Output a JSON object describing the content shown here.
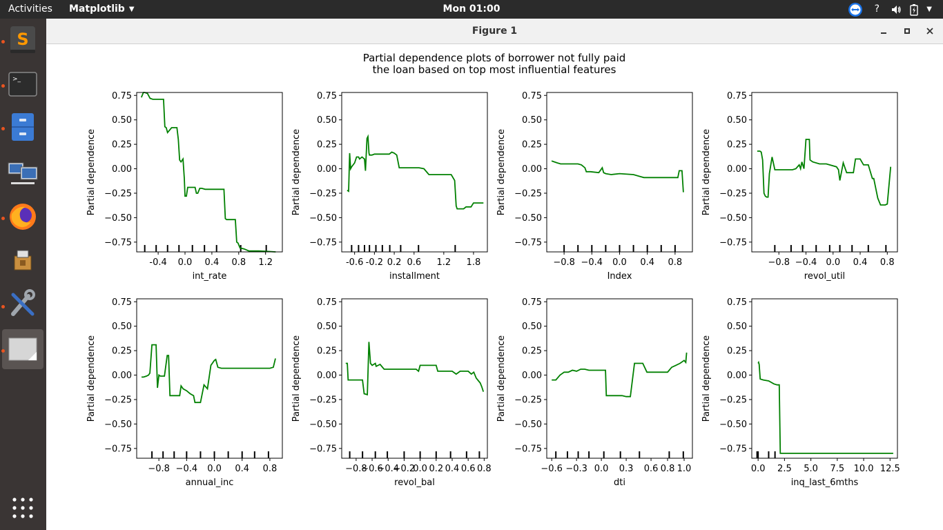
{
  "topbar": {
    "activities": "Activities",
    "app_menu": "Matplotlib",
    "clock": "Mon 01:00",
    "help": "?"
  },
  "dock": {
    "items": [
      {
        "name": "sublime-text",
        "icon": "sublime-text-icon",
        "running": true
      },
      {
        "name": "terminal",
        "icon": "terminal-icon",
        "running": true
      },
      {
        "name": "file-manager",
        "icon": "file-cabinet-icon",
        "running": true
      },
      {
        "name": "remote-desktop",
        "icon": "network-computers-icon",
        "running": false
      },
      {
        "name": "firefox",
        "icon": "firefox-icon",
        "running": true
      },
      {
        "name": "installer",
        "icon": "installer-box-icon",
        "running": false
      },
      {
        "name": "system-tools",
        "icon": "tools-icon",
        "running": true
      },
      {
        "name": "matplotlib-figure",
        "icon": "image-window-icon",
        "running": true,
        "active": true
      }
    ],
    "show_apps_icon": "app-grid-icon"
  },
  "window": {
    "title": "Figure 1",
    "buttons": [
      "minimize",
      "maximize",
      "close"
    ]
  },
  "figure": {
    "suptitle_line1": "Partial dependence plots of borrower not fully paid",
    "suptitle_line2": "the loan based on top most influential features"
  },
  "chart_data": [
    {
      "type": "line",
      "xlabel": "int_rate",
      "ylabel": "Partial dependence",
      "xlim": [
        -0.72,
        1.45
      ],
      "ylim": [
        -0.85,
        0.78
      ],
      "xticks": [
        "-0.4",
        "0.0",
        "0.4",
        "0.8",
        "1.2"
      ],
      "xtick_values": [
        -0.4,
        0,
        0.4,
        0.8,
        1.2
      ],
      "yticks": [
        "0.75",
        "0.50",
        "0.25",
        "0.00",
        "−0.25",
        "−0.50",
        "−0.75"
      ],
      "ytick_values": [
        0.75,
        0.5,
        0.25,
        0,
        -0.25,
        -0.5,
        -0.75
      ],
      "deciles": [
        -0.6,
        -0.43,
        -0.26,
        -0.09,
        0.11,
        0.29,
        0.47,
        0.83,
        1.21
      ],
      "color": "#008000",
      "x": [
        -0.65,
        -0.62,
        -0.6,
        -0.56,
        -0.52,
        -0.48,
        -0.4,
        -0.32,
        -0.3,
        -0.28,
        -0.26,
        -0.2,
        -0.12,
        -0.1,
        -0.08,
        -0.06,
        -0.03,
        -0.01,
        0.0,
        0.02,
        0.04,
        0.06,
        0.1,
        0.15,
        0.17,
        0.19,
        0.22,
        0.25,
        0.3,
        0.35,
        0.5,
        0.58,
        0.6,
        0.62,
        0.75,
        0.77,
        0.79,
        0.82,
        0.88,
        0.95,
        1.1,
        1.35
      ],
      "y": [
        0.73,
        0.78,
        0.78,
        0.77,
        0.72,
        0.71,
        0.71,
        0.71,
        0.43,
        0.42,
        0.37,
        0.42,
        0.42,
        0.3,
        0.09,
        0.07,
        0.1,
        -0.1,
        -0.28,
        -0.28,
        -0.19,
        -0.19,
        -0.19,
        -0.19,
        -0.25,
        -0.25,
        -0.2,
        -0.2,
        -0.21,
        -0.21,
        -0.21,
        -0.21,
        -0.51,
        -0.52,
        -0.52,
        -0.75,
        -0.76,
        -0.81,
        -0.82,
        -0.84,
        -0.84,
        -0.85
      ]
    },
    {
      "type": "line",
      "xlabel": "installment",
      "ylabel": "Partial dependence",
      "xlim": [
        -0.86,
        2.08
      ],
      "ylim": [
        -0.85,
        0.78
      ],
      "xticks": [
        "-0.6",
        "-0.2",
        "0.2",
        "0.6",
        "1.2",
        "1.8"
      ],
      "xtick_values": [
        -0.6,
        -0.2,
        0.2,
        0.6,
        1.2,
        1.8
      ],
      "yticks": [
        "0.75",
        "0.50",
        "0.25",
        "0.00",
        "−0.25",
        "−0.50",
        "−0.75"
      ],
      "ytick_values": [
        0.75,
        0.5,
        0.25,
        0,
        -0.25,
        -0.5,
        -0.75
      ],
      "deciles": [
        -0.66,
        -0.52,
        -0.4,
        -0.3,
        -0.17,
        -0.04,
        0.11,
        0.33,
        0.69,
        1.43
      ],
      "color": "#008000",
      "x": [
        -0.75,
        -0.72,
        -0.7,
        -0.68,
        -0.66,
        -0.6,
        -0.56,
        -0.52,
        -0.5,
        -0.45,
        -0.4,
        -0.38,
        -0.35,
        -0.33,
        -0.31,
        -0.3,
        -0.25,
        -0.2,
        -0.1,
        0.0,
        0.1,
        0.15,
        0.2,
        0.25,
        0.3,
        0.35,
        0.6,
        0.7,
        0.8,
        0.9,
        1.0,
        1.35,
        1.42,
        1.45,
        1.47,
        1.6,
        1.65,
        1.75,
        1.8,
        2.0
      ],
      "y": [
        -0.22,
        -0.23,
        0.16,
        0.0,
        0.02,
        0.06,
        0.12,
        0.12,
        0.1,
        0.12,
        0.1,
        -0.02,
        0.31,
        0.33,
        0.16,
        0.14,
        0.14,
        0.15,
        0.15,
        0.15,
        0.15,
        0.17,
        0.16,
        0.14,
        0.01,
        0.01,
        0.01,
        0.01,
        0.0,
        -0.06,
        -0.06,
        -0.06,
        -0.12,
        -0.38,
        -0.41,
        -0.41,
        -0.39,
        -0.39,
        -0.35,
        -0.35
      ]
    },
    {
      "type": "line",
      "xlabel": "Index",
      "ylabel": "Partial dependence",
      "xlim": [
        -1.05,
        1.05
      ],
      "ylim": [
        -0.85,
        0.78
      ],
      "xticks": [
        "−0.8",
        "−0.4",
        "0.0",
        "0.4",
        "0.8"
      ],
      "xtick_values": [
        -0.8,
        -0.4,
        0,
        0.4,
        0.8
      ],
      "yticks": [
        "0.75",
        "0.50",
        "0.25",
        "0.00",
        "−0.25",
        "−0.50",
        "−0.75"
      ],
      "ytick_values": [
        0.75,
        0.5,
        0.25,
        0,
        -0.25,
        -0.5,
        -0.75
      ],
      "deciles": [
        -0.8,
        -0.6,
        -0.4,
        -0.2,
        0.0,
        0.2,
        0.4,
        0.6,
        0.8
      ],
      "color": "#008000",
      "x": [
        -0.98,
        -0.94,
        -0.9,
        -0.85,
        -0.6,
        -0.55,
        -0.5,
        -0.48,
        -0.42,
        -0.3,
        -0.25,
        -0.23,
        -0.2,
        -0.12,
        0.0,
        0.2,
        0.3,
        0.35,
        0.5,
        0.7,
        0.8,
        0.84,
        0.86,
        0.9,
        0.92
      ],
      "y": [
        0.08,
        0.07,
        0.06,
        0.05,
        0.05,
        0.04,
        0.01,
        -0.03,
        -0.03,
        -0.04,
        0.01,
        -0.04,
        -0.05,
        -0.06,
        -0.05,
        -0.06,
        -0.08,
        -0.09,
        -0.09,
        -0.09,
        -0.09,
        -0.09,
        -0.02,
        -0.02,
        -0.24
      ]
    },
    {
      "type": "line",
      "xlabel": "revol_util",
      "ylabel": "Partial dependence",
      "xlim": [
        -1.2,
        0.95
      ],
      "ylim": [
        -0.85,
        0.78
      ],
      "xticks": [
        "−0.8",
        "−0.4",
        "0.0",
        "0.4",
        "0.8"
      ],
      "xtick_values": [
        -0.8,
        -0.4,
        0,
        0.4,
        0.8
      ],
      "yticks": [
        "0.75",
        "0.50",
        "0.25",
        "0.00",
        "−0.25",
        "−0.50",
        "−0.75"
      ],
      "ytick_values": [
        0.75,
        0.5,
        0.25,
        0,
        -0.25,
        -0.5,
        -0.75
      ],
      "deciles": [
        -0.86,
        -0.62,
        -0.45,
        -0.25,
        -0.05,
        0.1,
        0.28,
        0.52,
        0.78
      ],
      "color": "#008000",
      "x": [
        -1.12,
        -1.08,
        -1.06,
        -1.04,
        -1.02,
        -1.0,
        -0.98,
        -0.96,
        -0.94,
        -0.9,
        -0.86,
        -0.8,
        -0.6,
        -0.55,
        -0.5,
        -0.48,
        -0.46,
        -0.43,
        -0.4,
        -0.35,
        -0.34,
        -0.3,
        -0.2,
        -0.1,
        0.05,
        0.08,
        0.1,
        0.15,
        0.2,
        0.3,
        0.33,
        0.4,
        0.45,
        0.52,
        0.58,
        0.6,
        0.66,
        0.7,
        0.77,
        0.8,
        0.85
      ],
      "y": [
        0.18,
        0.18,
        0.17,
        0.09,
        -0.25,
        -0.28,
        -0.29,
        -0.29,
        -0.05,
        0.12,
        -0.01,
        -0.01,
        -0.01,
        0.0,
        0.04,
        0.0,
        0.07,
        0.0,
        0.3,
        0.3,
        0.09,
        0.07,
        0.05,
        0.05,
        0.02,
        -0.01,
        -0.12,
        0.06,
        -0.04,
        -0.04,
        0.1,
        0.1,
        0.04,
        0.04,
        -0.1,
        -0.1,
        -0.3,
        -0.37,
        -0.37,
        -0.36,
        0.02
      ]
    },
    {
      "type": "line",
      "xlabel": "annual_inc",
      "ylabel": "Partial dependence",
      "xlim": [
        -1.12,
        0.98
      ],
      "ylim": [
        -0.85,
        0.78
      ],
      "xticks": [
        "−0.8",
        "−0.4",
        "0.0",
        "0.4",
        "0.8"
      ],
      "xtick_values": [
        -0.8,
        -0.4,
        0,
        0.4,
        0.8
      ],
      "yticks": [
        "0.75",
        "0.50",
        "0.25",
        "0.00",
        "−0.25",
        "−0.50",
        "−0.75"
      ],
      "ytick_values": [
        0.75,
        0.5,
        0.25,
        0,
        -0.25,
        -0.5,
        -0.75
      ],
      "deciles": [
        -0.9,
        -0.74,
        -0.58,
        -0.4,
        -0.2,
        0.0,
        0.2,
        0.4,
        0.58,
        0.78
      ],
      "color": "#008000",
      "x": [
        -1.05,
        -1.02,
        -0.98,
        -0.95,
        -0.93,
        -0.9,
        -0.84,
        -0.82,
        -0.8,
        -0.78,
        -0.75,
        -0.72,
        -0.68,
        -0.66,
        -0.64,
        -0.6,
        -0.5,
        -0.48,
        -0.45,
        -0.4,
        -0.35,
        -0.3,
        -0.28,
        -0.2,
        -0.15,
        -0.1,
        -0.05,
        0.0,
        0.02,
        0.05,
        0.1,
        0.2,
        0.4,
        0.6,
        0.8,
        0.85,
        0.88
      ],
      "y": [
        -0.02,
        -0.02,
        -0.01,
        0.0,
        0.02,
        0.31,
        0.31,
        -0.13,
        0.0,
        -0.01,
        -0.01,
        -0.01,
        0.2,
        0.2,
        -0.21,
        -0.21,
        -0.21,
        -0.11,
        -0.14,
        -0.16,
        -0.19,
        -0.21,
        -0.28,
        -0.28,
        -0.1,
        -0.14,
        0.1,
        0.15,
        0.16,
        0.08,
        0.07,
        0.07,
        0.07,
        0.07,
        0.07,
        0.08,
        0.17
      ]
    },
    {
      "type": "line",
      "xlabel": "revol_bal",
      "ylabel": "Partial dependence",
      "xlim": [
        -0.98,
        0.84
      ],
      "ylim": [
        -0.85,
        0.78
      ],
      "xticks": [
        "−0.8",
        "−0.6",
        "−0.4",
        "−0.2",
        "0.0",
        "0.2",
        "0.4",
        "0.6",
        "0.8"
      ],
      "xtick_values": [
        -0.8,
        -0.6,
        -0.4,
        -0.2,
        0,
        0.2,
        0.4,
        0.6,
        0.8
      ],
      "yticks": [
        "0.75",
        "0.50",
        "0.25",
        "0.00",
        "−0.25",
        "−0.50",
        "−0.75"
      ],
      "ytick_values": [
        0.75,
        0.5,
        0.25,
        0,
        -0.25,
        -0.5,
        -0.75
      ],
      "deciles": [
        -0.88,
        -0.72,
        -0.56,
        -0.41,
        -0.2,
        0.0,
        0.2,
        0.38,
        0.58,
        0.74
      ],
      "color": "#008000",
      "x": [
        -0.93,
        -0.91,
        -0.9,
        -0.85,
        -0.8,
        -0.72,
        -0.7,
        -0.66,
        -0.64,
        -0.62,
        -0.6,
        -0.56,
        -0.55,
        -0.5,
        -0.45,
        -0.4,
        -0.2,
        -0.05,
        -0.02,
        0.0,
        0.2,
        0.22,
        0.4,
        0.45,
        0.5,
        0.6,
        0.64,
        0.67,
        0.7,
        0.73,
        0.75,
        0.77,
        0.79
      ],
      "y": [
        0.12,
        0.12,
        -0.05,
        -0.05,
        -0.05,
        -0.05,
        -0.19,
        -0.2,
        0.34,
        0.12,
        0.1,
        0.12,
        0.09,
        0.11,
        0.06,
        0.06,
        0.06,
        0.06,
        0.04,
        0.1,
        0.1,
        0.04,
        0.04,
        0.01,
        0.04,
        0.04,
        0.01,
        0.03,
        -0.03,
        -0.06,
        -0.08,
        -0.12,
        -0.17
      ]
    },
    {
      "type": "line",
      "xlabel": "dti",
      "ylabel": "Partial dependence",
      "xlim": [
        -0.66,
        1.1
      ],
      "ylim": [
        -0.85,
        0.78
      ],
      "xticks": [
        "−0.6",
        "−0.3",
        "0.0",
        "0.3",
        "0.6",
        "0.8",
        "1.0"
      ],
      "xtick_values": [
        -0.6,
        -0.3,
        0,
        0.3,
        0.6,
        0.8,
        1.0
      ],
      "yticks": [
        "0.75",
        "0.50",
        "0.25",
        "0.00",
        "−0.25",
        "−0.50",
        "−0.75"
      ],
      "ytick_values": [
        0.75,
        0.5,
        0.25,
        0,
        -0.25,
        -0.5,
        -0.75
      ],
      "deciles": [
        -0.55,
        -0.41,
        -0.28,
        -0.15,
        0.03,
        0.23,
        0.46,
        0.82,
        0.99
      ],
      "color": "#008000",
      "x": [
        -0.6,
        -0.55,
        -0.5,
        -0.45,
        -0.4,
        -0.35,
        -0.3,
        -0.25,
        -0.2,
        -0.15,
        -0.1,
        0.0,
        0.05,
        0.06,
        0.2,
        0.25,
        0.3,
        0.35,
        0.4,
        0.45,
        0.5,
        0.55,
        0.6,
        0.8,
        0.82,
        0.85,
        0.9,
        0.95,
        1.0,
        1.02,
        1.03
      ],
      "y": [
        -0.05,
        -0.05,
        0.0,
        0.03,
        0.03,
        0.05,
        0.04,
        0.06,
        0.06,
        0.05,
        0.05,
        0.05,
        0.05,
        -0.21,
        -0.21,
        -0.21,
        -0.22,
        -0.22,
        0.12,
        0.12,
        0.12,
        0.03,
        0.03,
        0.03,
        0.05,
        0.08,
        0.1,
        0.12,
        0.15,
        0.13,
        0.23
      ]
    },
    {
      "type": "line",
      "xlabel": "inq_last_6mths",
      "ylabel": "Partial dependence",
      "xlim": [
        -0.6,
        13.2
      ],
      "ylim": [
        -0.85,
        0.78
      ],
      "xticks": [
        "0.0",
        "2.5",
        "5.0",
        "7.5",
        "10.0",
        "12.5"
      ],
      "xtick_values": [
        0,
        2.5,
        5,
        7.5,
        10,
        12.5
      ],
      "yticks": [
        "0.75",
        "0.50",
        "0.25",
        "0.00",
        "−0.25",
        "−0.50",
        "−0.75"
      ],
      "ytick_values": [
        0.75,
        0.5,
        0.25,
        0,
        -0.25,
        -0.5,
        -0.75
      ],
      "deciles": [
        -0.1,
        0.0,
        1.0,
        1.6
      ],
      "color": "#008000",
      "x": [
        0.0,
        0.05,
        0.1,
        0.2,
        0.5,
        1.0,
        1.5,
        1.8,
        2.0,
        2.1,
        4.0,
        8.0,
        12.8
      ],
      "y": [
        0.12,
        0.13,
        0.11,
        -0.04,
        -0.05,
        -0.06,
        -0.09,
        -0.1,
        -0.1,
        -0.8,
        -0.8,
        -0.8,
        -0.8
      ]
    }
  ]
}
